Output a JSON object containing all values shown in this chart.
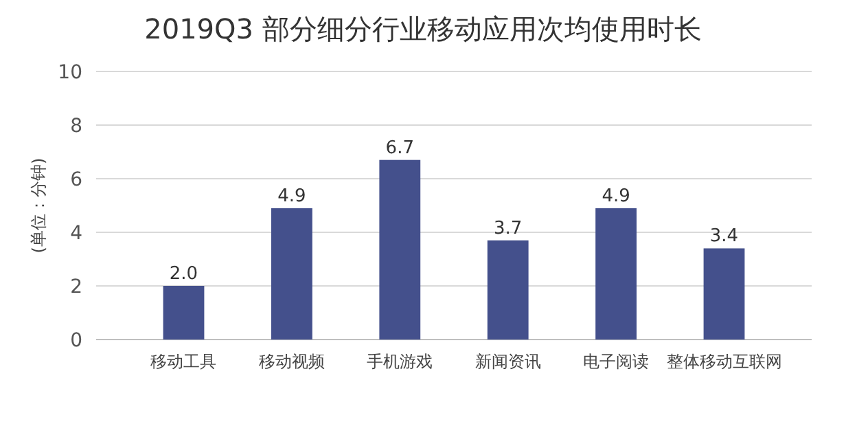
{
  "chart_data": {
    "type": "bar",
    "title": "2019Q3 部分细分行业移动应用次均使用时长",
    "ylabel": "(单位：分钟)",
    "categories": [
      "移动工具",
      "移动视频",
      "手机游戏",
      "新闻资讯",
      "电子阅读",
      "整体移动互联网"
    ],
    "values": [
      2.0,
      4.9,
      6.7,
      3.7,
      4.9,
      3.4
    ],
    "color": "#44508c",
    "ylim": [
      0,
      10
    ],
    "yticks": [
      0,
      2,
      4,
      6,
      8,
      10
    ],
    "grid": "y",
    "value_labels": [
      "2.0",
      "4.9",
      "6.7",
      "3.7",
      "4.9",
      "3.4"
    ]
  }
}
